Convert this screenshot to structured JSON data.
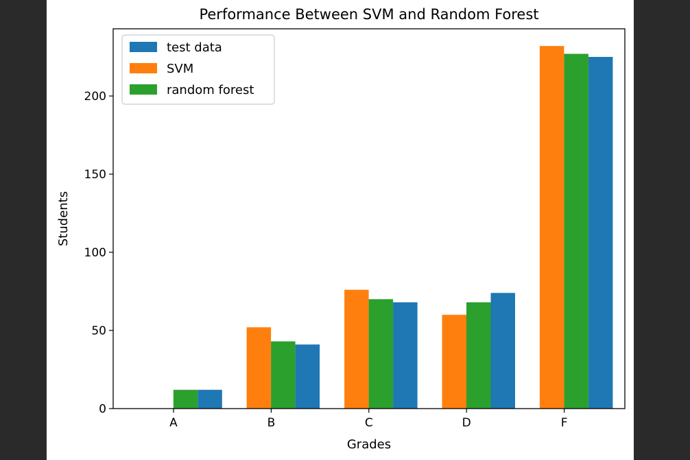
{
  "chart_data": {
    "type": "bar",
    "title": "Performance Between SVM and Random Forest",
    "xlabel": "Grades",
    "ylabel": "Students",
    "categories": [
      "A",
      "B",
      "C",
      "D",
      "F"
    ],
    "series": [
      {
        "name": "SVM",
        "color": "#ff7f0e",
        "values": [
          0,
          52,
          76,
          60,
          232
        ]
      },
      {
        "name": "random forest",
        "color": "#2ca02c",
        "values": [
          12,
          43,
          70,
          68,
          227
        ]
      },
      {
        "name": "test data",
        "color": "#1f77b4",
        "values": [
          12,
          41,
          68,
          74,
          225
        ]
      }
    ],
    "legend_order": [
      "test data",
      "SVM",
      "random forest"
    ],
    "legend_placement": "top-left",
    "ylim": [
      0,
      243
    ],
    "yticks": [
      0,
      50,
      100,
      150,
      200
    ],
    "grid": false
  }
}
